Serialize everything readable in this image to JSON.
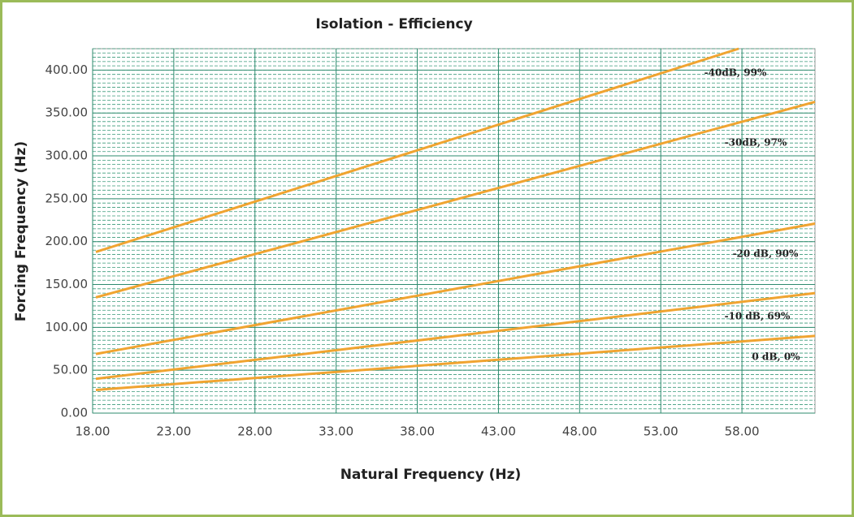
{
  "chart_data": {
    "type": "line",
    "title": "Isolation - Efficiency",
    "x_label": "Natural Frequency (Hz)",
    "y_label": "Forcing Frequency (Hz)",
    "xlim": [
      18,
      62.5
    ],
    "ylim": [
      0,
      425
    ],
    "xticks": [
      {
        "value": 18,
        "label": "18.00"
      },
      {
        "value": 23,
        "label": "23.00"
      },
      {
        "value": 28,
        "label": "28.00"
      },
      {
        "value": 33,
        "label": "33.00"
      },
      {
        "value": 38,
        "label": "38.00"
      },
      {
        "value": 43,
        "label": "43.00"
      },
      {
        "value": 48,
        "label": "48.00"
      },
      {
        "value": 53,
        "label": "53.00"
      },
      {
        "value": 58,
        "label": "58.00"
      }
    ],
    "yticks": [
      {
        "value": 0,
        "label": "0.00"
      },
      {
        "value": 50,
        "label": "50.00"
      },
      {
        "value": 100,
        "label": "100.00"
      },
      {
        "value": 150,
        "label": "150.00"
      },
      {
        "value": 200,
        "label": "200.00"
      },
      {
        "value": 250,
        "label": "250.00"
      },
      {
        "value": 300,
        "label": "300.00"
      },
      {
        "value": 350,
        "label": "350.00"
      },
      {
        "value": 400,
        "label": "400.00"
      }
    ],
    "y_minor_step": 5,
    "grid": true,
    "series": [
      {
        "name": "-40dB, 99%",
        "color": "#f0a431",
        "x": [
          18.2,
          57.8
        ],
        "values": [
          188,
          425
        ]
      },
      {
        "name": "-30dB, 97%",
        "color": "#f0a431",
        "x": [
          18.2,
          62.5
        ],
        "values": [
          135,
          363
        ]
      },
      {
        "name": "-20 dB, 90%",
        "color": "#f0a431",
        "x": [
          18.2,
          62.5
        ],
        "values": [
          69,
          221
        ]
      },
      {
        "name": "-10 dB, 69%",
        "color": "#f0a431",
        "x": [
          18.2,
          62.5
        ],
        "values": [
          40,
          140
        ]
      },
      {
        "name": "0 dB, 0%",
        "color": "#f0a431",
        "x": [
          18.2,
          62.5
        ],
        "values": [
          27,
          90
        ]
      }
    ]
  }
}
